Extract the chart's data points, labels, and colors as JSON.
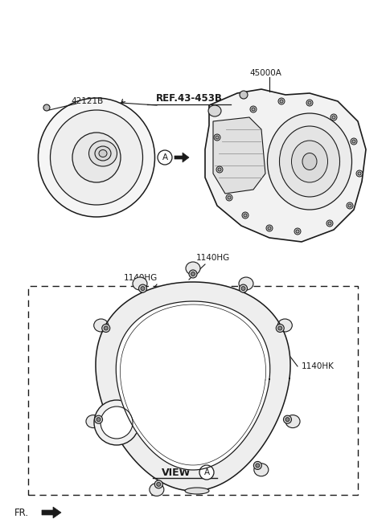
{
  "bg_color": "#ffffff",
  "line_color": "#1a1a1a",
  "label_42121B": "42121B",
  "label_ref": "REF.43-453B",
  "label_45000A": "45000A",
  "label_1140HG_1": "1140HG",
  "label_1140HG_2": "1140HG",
  "label_1140HK": "1140HK",
  "label_view": "VIEW",
  "label_FR": "FR."
}
